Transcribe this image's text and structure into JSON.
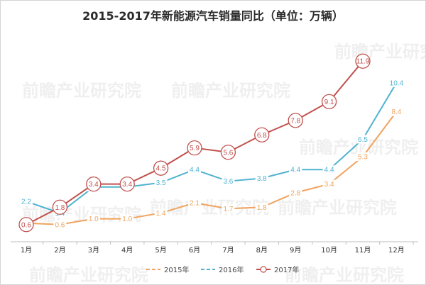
{
  "chart_data": {
    "type": "line",
    "title": "2015-2017年新能源汽车销量同比（单位：万辆）",
    "categories": [
      "1月",
      "2月",
      "3月",
      "4月",
      "5月",
      "6月",
      "7月",
      "8月",
      "9月",
      "10月",
      "11月",
      "12月"
    ],
    "ylim": [
      0,
      13
    ],
    "grid": false,
    "legend_position": "bottom",
    "series": [
      {
        "name": "2015年",
        "color": "#f0a35e",
        "values": [
          0.7,
          0.6,
          1.0,
          1.0,
          1.4,
          2.1,
          1.7,
          1.8,
          2.8,
          3.4,
          5.3,
          8.4
        ]
      },
      {
        "name": "2016年",
        "color": "#4fb3cf",
        "values": [
          2.2,
          1.4,
          3.2,
          3.2,
          3.5,
          4.4,
          3.6,
          3.8,
          4.4,
          4.4,
          6.5,
          10.4
        ]
      },
      {
        "name": "2017年",
        "color": "#c0504d",
        "values": [
          0.6,
          1.8,
          3.4,
          3.4,
          4.5,
          5.9,
          5.6,
          6.8,
          7.8,
          9.1,
          11.9,
          null
        ]
      }
    ]
  },
  "watermark": "前瞻产业研究院"
}
